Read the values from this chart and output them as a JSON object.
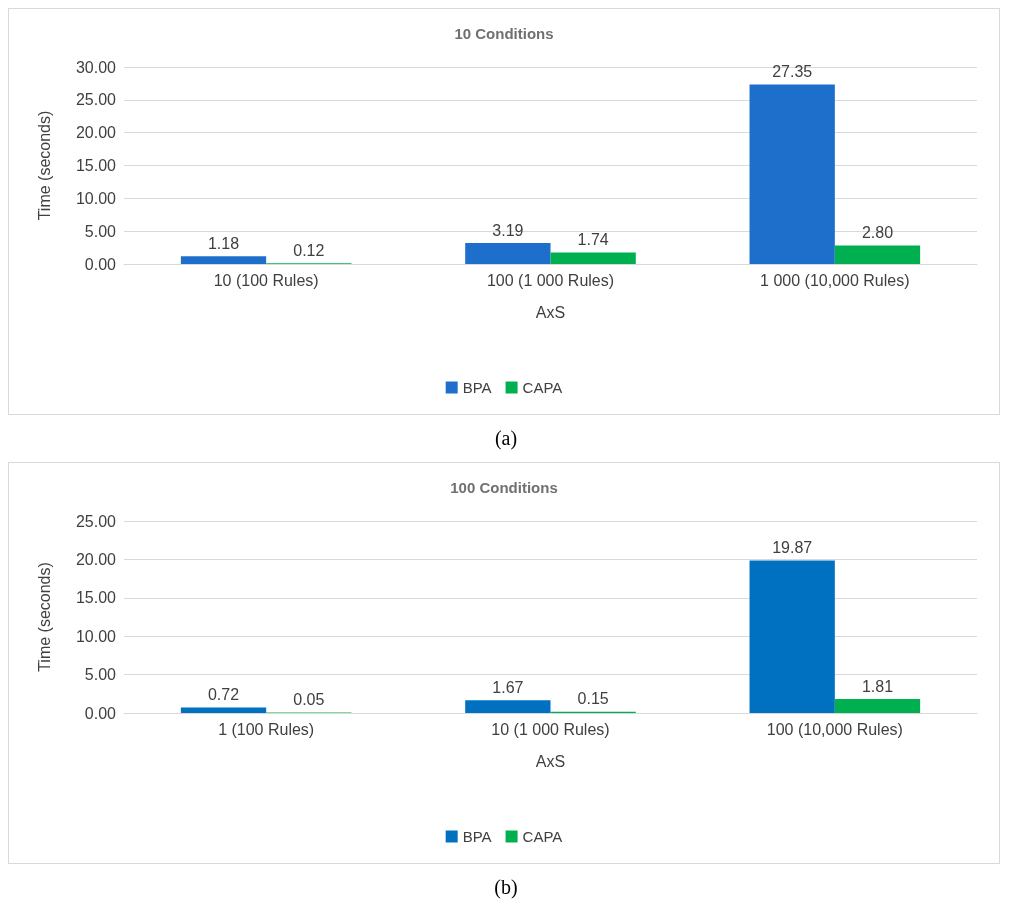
{
  "chart_data": [
    {
      "type": "bar",
      "title": "10 Conditions",
      "xlabel": "AxS",
      "ylabel": "Time (seconds)",
      "categories": [
        "10 (100 Rules)",
        "100 (1 000 Rules)",
        "1 000 (10,000 Rules)"
      ],
      "series": [
        {
          "name": "BPA",
          "color": "#1e6fcc",
          "values": [
            1.18,
            3.19,
            27.35
          ],
          "value_labels": [
            "1.18",
            "3.19",
            "27.35"
          ]
        },
        {
          "name": "CAPA",
          "color": "#00b050",
          "values": [
            0.12,
            1.74,
            2.8
          ],
          "value_labels": [
            "0.12",
            "1.74",
            "2.80"
          ]
        }
      ],
      "ylim": [
        0,
        30
      ],
      "yticks": [
        {
          "value": 0,
          "label": "0.00"
        },
        {
          "value": 5,
          "label": "5.00"
        },
        {
          "value": 10,
          "label": "10.00"
        },
        {
          "value": 15,
          "label": "15.00"
        },
        {
          "value": 20,
          "label": "20.00"
        },
        {
          "value": 25,
          "label": "25.00"
        },
        {
          "value": 30,
          "label": "30.00"
        }
      ],
      "grid": "y",
      "legend": "bottom",
      "annotations": [
        "(a)"
      ]
    },
    {
      "type": "bar",
      "title": "100 Conditions",
      "xlabel": "AxS",
      "ylabel": "Time (seconds)",
      "categories": [
        "1 (100 Rules)",
        "10 (1 000 Rules)",
        "100 (10,000 Rules)"
      ],
      "series": [
        {
          "name": "BPA",
          "color": "#0070c0",
          "values": [
            0.72,
            1.67,
            19.87
          ],
          "value_labels": [
            "0.72",
            "1.67",
            "19.87"
          ]
        },
        {
          "name": "CAPA",
          "color": "#00b050",
          "values": [
            0.05,
            0.15,
            1.81
          ],
          "value_labels": [
            "0.05",
            "0.15",
            "1.81"
          ]
        }
      ],
      "ylim": [
        0,
        25
      ],
      "yticks": [
        {
          "value": 0,
          "label": "0.00"
        },
        {
          "value": 5,
          "label": "5.00"
        },
        {
          "value": 10,
          "label": "10.00"
        },
        {
          "value": 15,
          "label": "15.00"
        },
        {
          "value": 20,
          "label": "20.00"
        },
        {
          "value": 25,
          "label": "25.00"
        }
      ],
      "grid": "y",
      "legend": "bottom",
      "annotations": [
        "(b)"
      ]
    }
  ]
}
